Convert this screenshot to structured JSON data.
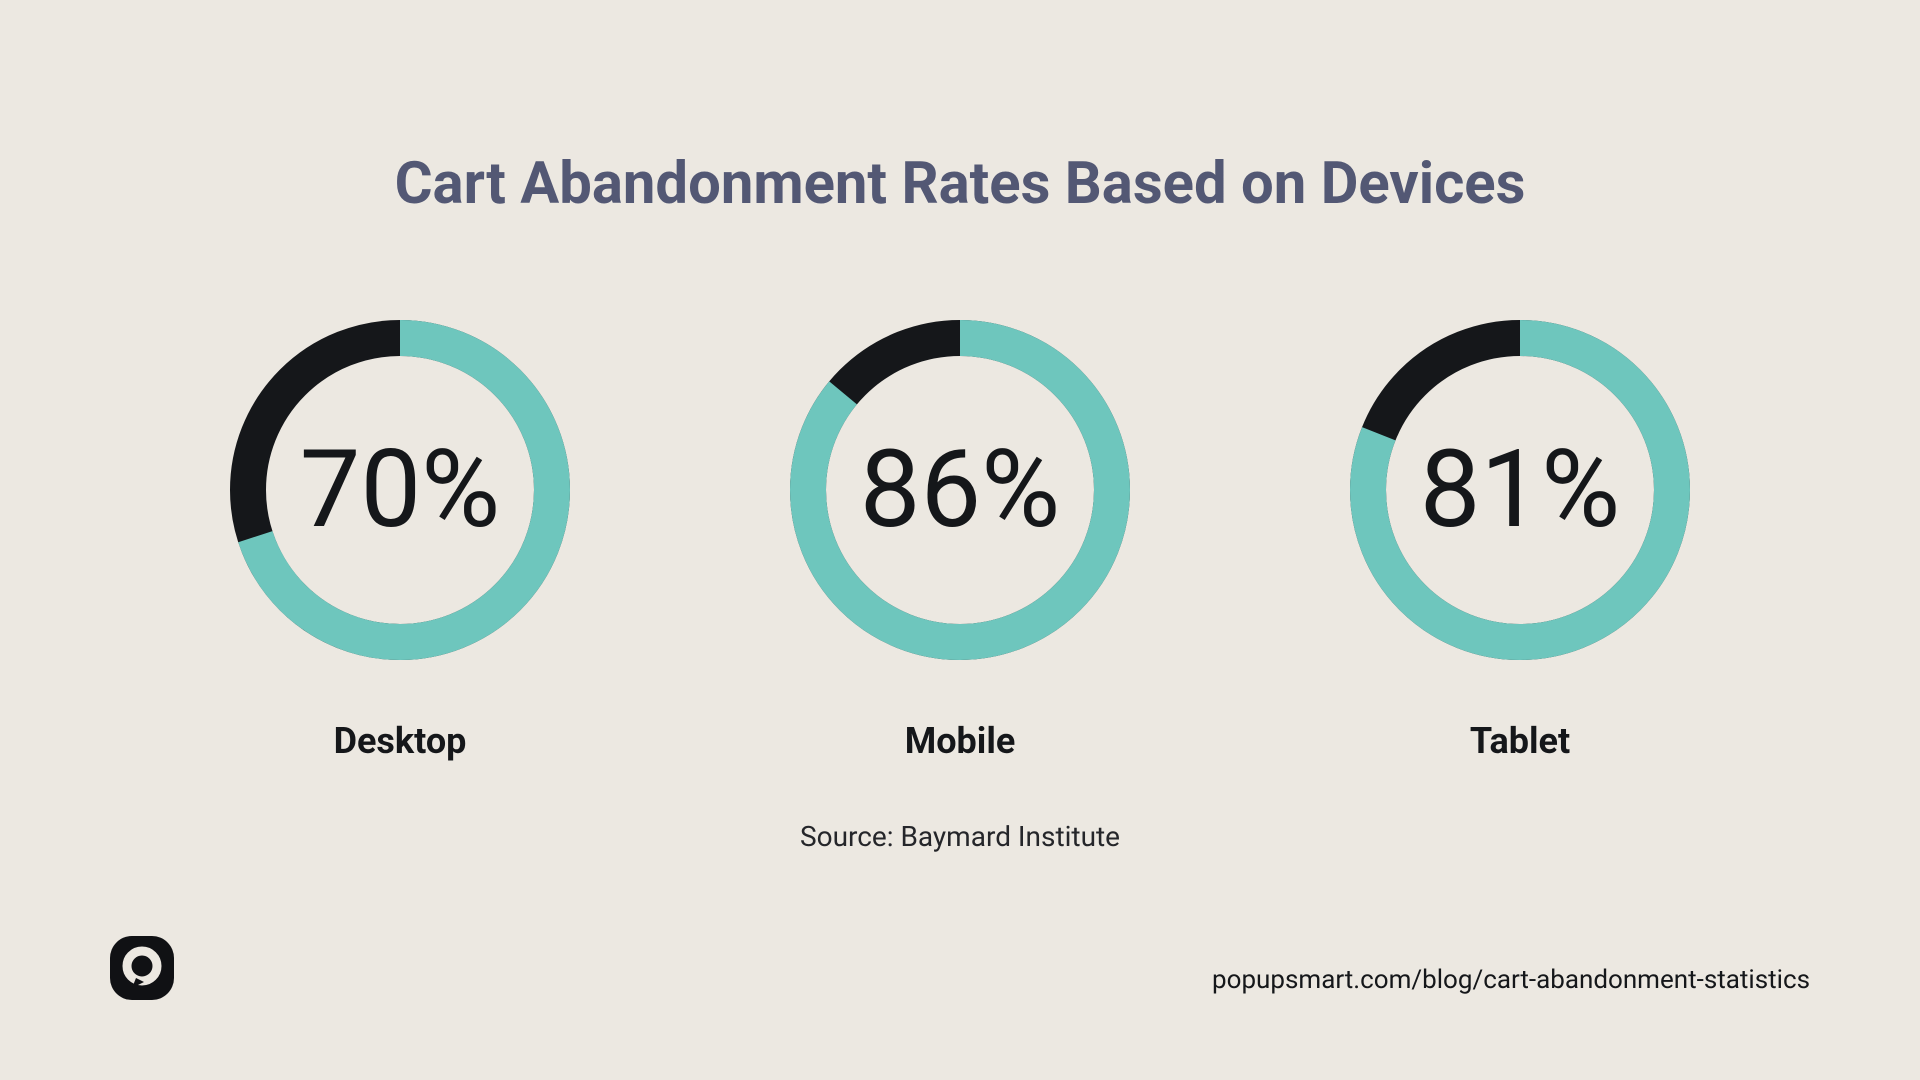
{
  "background_color": "#ece8e1",
  "title": {
    "text": "Cart Abandonment Rates Based on Devices",
    "color": "#535874",
    "fontsize": 58
  },
  "donut_defaults": {
    "size": 340,
    "stroke_width": 36,
    "filled_color": "#6ec6bd",
    "remaining_color": "#15171a",
    "center_text_color": "#15171a",
    "center_text_fontsize": 108,
    "label_color": "#15171a",
    "label_fontsize": 36
  },
  "donuts": [
    {
      "percent": 70,
      "display": "70%",
      "label": "Desktop"
    },
    {
      "percent": 86,
      "display": "86%",
      "label": "Mobile"
    },
    {
      "percent": 81,
      "display": "81%",
      "label": "Tablet"
    }
  ],
  "source": {
    "text": "Source: Baymard Institute",
    "color": "#25262a",
    "fontsize": 28
  },
  "footer_url": {
    "text": "popupsmart.com/blog/cart-abandonment-statistics",
    "color": "#15171a",
    "fontsize": 26
  },
  "logo": {
    "bg_color": "#101114",
    "inner_color": "#ece8e1"
  }
}
